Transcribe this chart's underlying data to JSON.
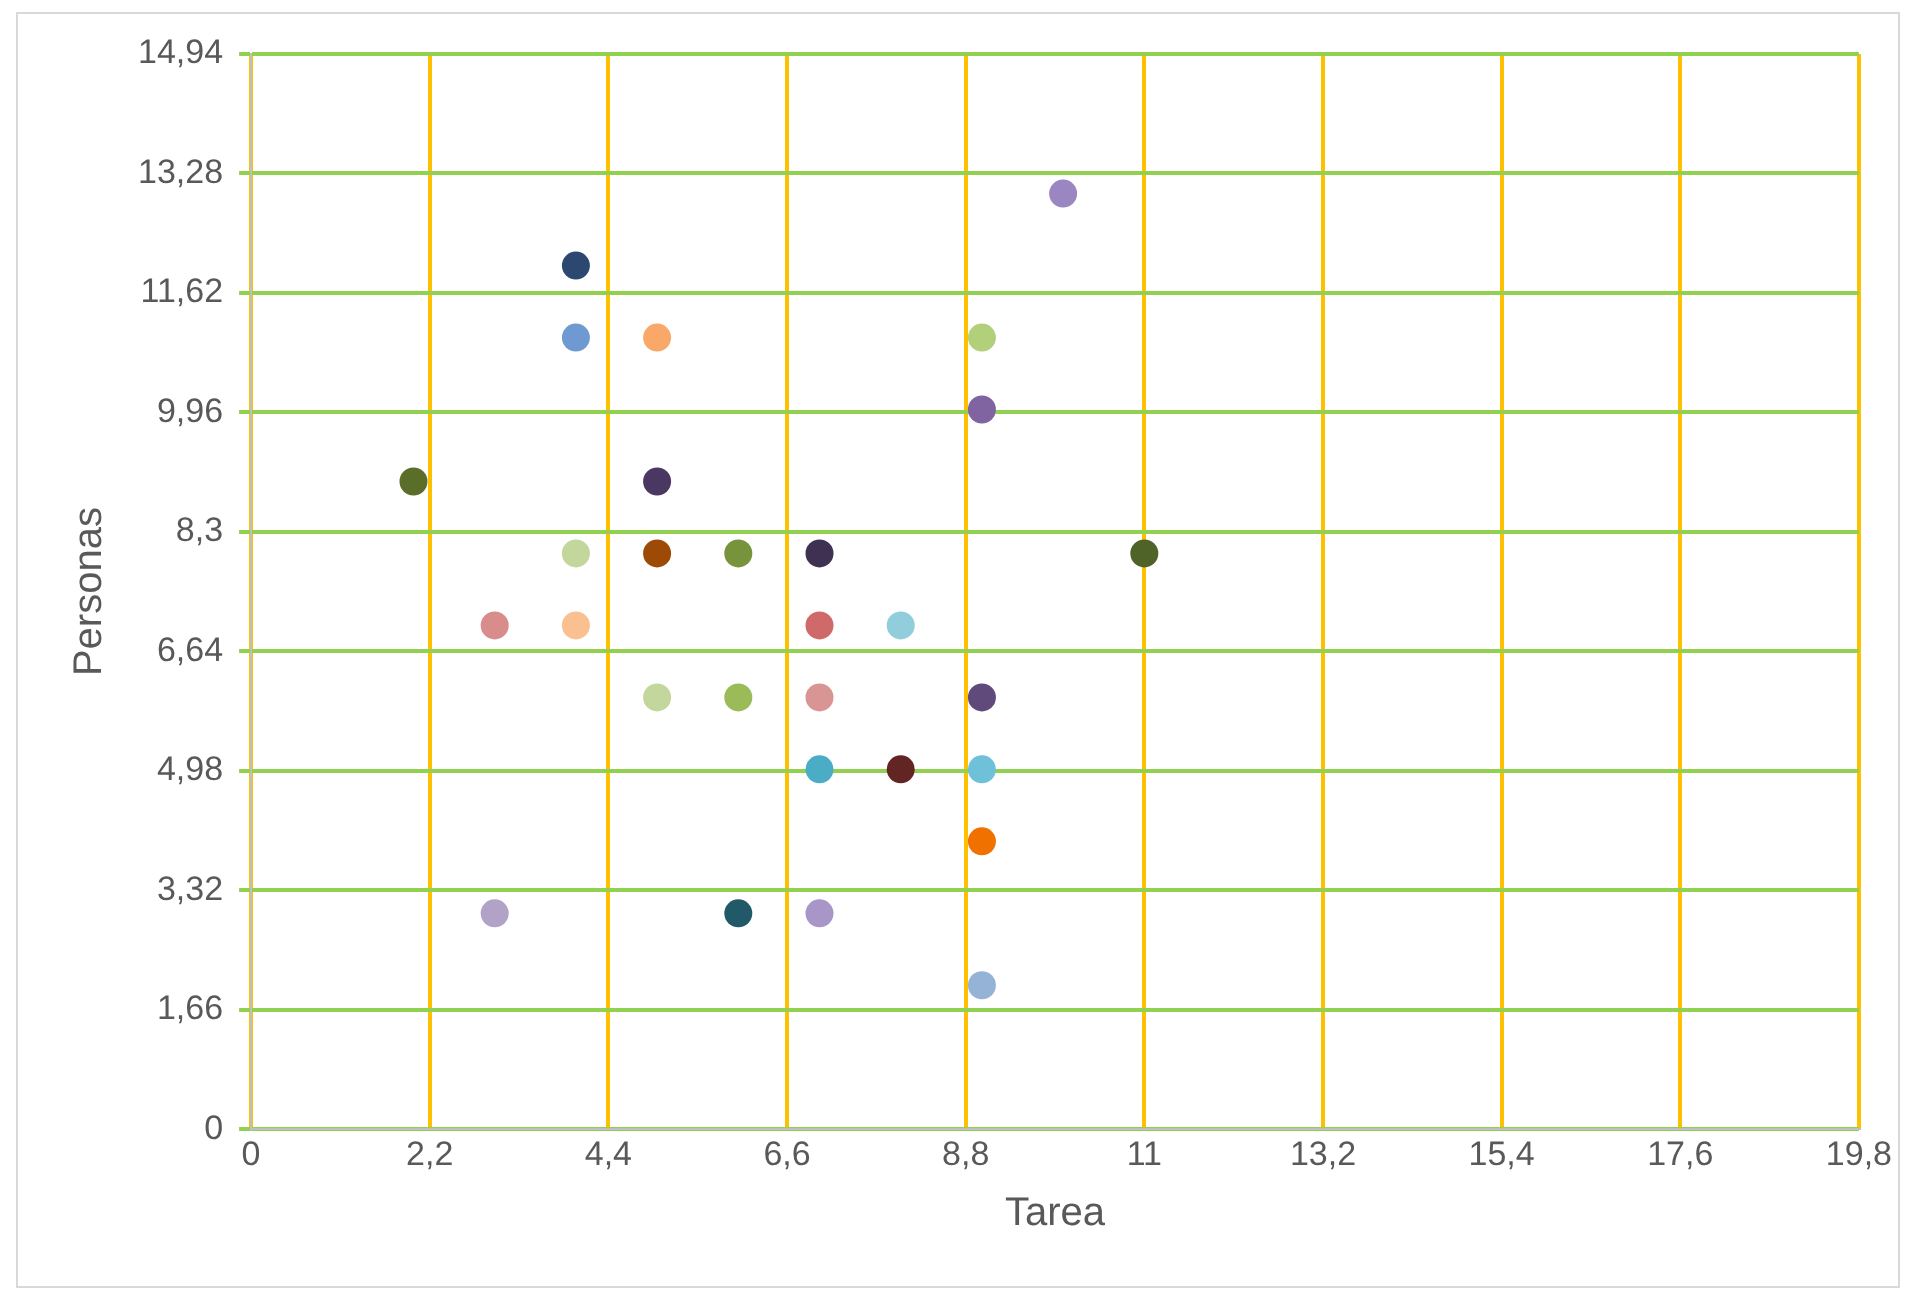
{
  "chart_data": {
    "type": "scatter",
    "xlabel": "Tarea",
    "ylabel": "Personas",
    "x": [
      2,
      3,
      3,
      4,
      4,
      4,
      4,
      5,
      5,
      5,
      5,
      6,
      6,
      6,
      7,
      7,
      7,
      7,
      7,
      8,
      8,
      9,
      9,
      9,
      9,
      9,
      9,
      10,
      11
    ],
    "values": [
      9,
      7,
      3,
      12,
      11,
      8,
      7,
      11,
      9,
      8,
      6,
      8,
      6,
      3,
      8,
      7,
      6,
      5,
      3,
      7,
      5,
      11,
      10,
      6,
      5,
      4,
      2,
      13,
      8
    ],
    "colors": [
      "#5a6e2a",
      "#d98c8c",
      "#b3a2c7",
      "#2c4770",
      "#6e9ad1",
      "#c3d69b",
      "#fac090",
      "#f9a86a",
      "#4b3862",
      "#9c4a06",
      "#c3d69b",
      "#77933c",
      "#9bbb59",
      "#215968",
      "#3f3151",
      "#d06a6a",
      "#d99594",
      "#4bacc6",
      "#a896c9",
      "#92cddc",
      "#632523",
      "#b2cf7a",
      "#8064a2",
      "#604a7b",
      "#6ec1d8",
      "#f07000",
      "#95b3d7",
      "#9a86c0",
      "#4f6228"
    ],
    "xlim": [
      0,
      19.8
    ],
    "xticks": [
      0,
      {
        "value": 2.2,
        "label": "2,2"
      },
      {
        "value": 4.4,
        "label": "4,4"
      },
      {
        "value": 6.6,
        "label": "6,6"
      },
      {
        "value": 8.8,
        "label": "8,8"
      },
      11,
      {
        "value": 13.2,
        "label": "13,2"
      },
      {
        "value": 15.4,
        "label": "15,4"
      },
      {
        "value": 17.6,
        "label": "17,6"
      },
      {
        "value": 19.8,
        "label": "19,8"
      }
    ],
    "ylim": [
      0,
      14.94
    ],
    "yticks": [
      0,
      {
        "value": 1.66,
        "label": "1,66"
      },
      {
        "value": 3.32,
        "label": "3,32"
      },
      {
        "value": 4.98,
        "label": "4,98"
      },
      {
        "value": 6.64,
        "label": "6,64"
      },
      {
        "value": 8.3,
        "label": "8,3"
      },
      {
        "value": 9.96,
        "label": "9,96"
      },
      {
        "value": 11.62,
        "label": "11,62"
      },
      {
        "value": 13.28,
        "label": "13,28"
      },
      {
        "value": 14.94,
        "label": "14,94"
      }
    ],
    "grid": true,
    "marker": "circle",
    "legend": false
  }
}
